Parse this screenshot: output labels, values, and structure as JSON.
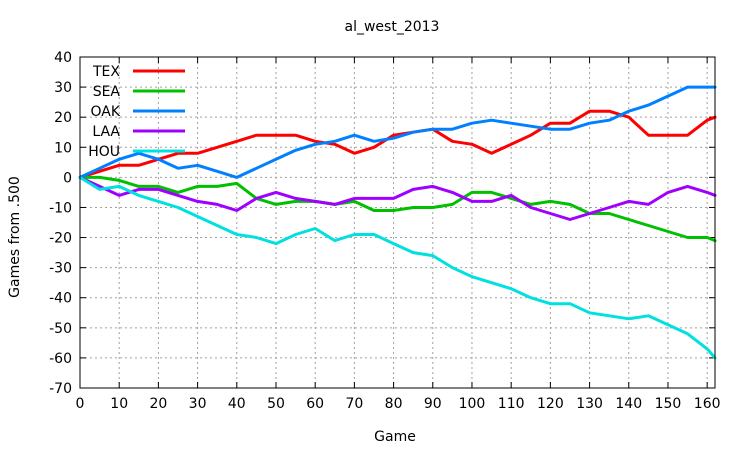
{
  "chart_data": {
    "type": "line",
    "title": "al_west_2013",
    "xlabel": "Game",
    "ylabel": "Games from .500",
    "xlim": [
      0,
      162
    ],
    "ylim": [
      -70,
      40
    ],
    "xticks": [
      0,
      10,
      20,
      30,
      40,
      50,
      60,
      70,
      80,
      90,
      100,
      110,
      120,
      130,
      140,
      150,
      160
    ],
    "yticks": [
      -70,
      -60,
      -50,
      -40,
      -30,
      -20,
      -10,
      0,
      10,
      20,
      30,
      40
    ],
    "grid": true,
    "legend_position": "top-left",
    "series": [
      {
        "name": "TEX",
        "color": "#ff0000",
        "x": [
          0,
          5,
          10,
          15,
          20,
          25,
          30,
          35,
          40,
          45,
          50,
          55,
          60,
          65,
          70,
          75,
          80,
          85,
          90,
          95,
          100,
          105,
          110,
          115,
          120,
          125,
          130,
          135,
          140,
          145,
          150,
          155,
          160,
          162
        ],
        "y": [
          0,
          2,
          4,
          4,
          6,
          8,
          8,
          10,
          12,
          14,
          14,
          14,
          12,
          11,
          8,
          10,
          14,
          15,
          16,
          12,
          11,
          8,
          11,
          14,
          18,
          18,
          22,
          22,
          20,
          14,
          14,
          14,
          19,
          20
        ]
      },
      {
        "name": "SEA",
        "color": "#00c000",
        "x": [
          0,
          5,
          10,
          15,
          20,
          25,
          30,
          35,
          40,
          45,
          50,
          55,
          60,
          65,
          70,
          75,
          80,
          85,
          90,
          95,
          100,
          105,
          110,
          115,
          120,
          125,
          130,
          135,
          140,
          145,
          150,
          155,
          160,
          162
        ],
        "y": [
          0,
          0,
          -1,
          -3,
          -3,
          -5,
          -3,
          -3,
          -2,
          -7,
          -9,
          -8,
          -8,
          -9,
          -8,
          -11,
          -11,
          -10,
          -10,
          -9,
          -5,
          -5,
          -7,
          -9,
          -8,
          -9,
          -12,
          -12,
          -14,
          -16,
          -18,
          -20,
          -20,
          -21
        ]
      },
      {
        "name": "OAK",
        "color": "#0080ff",
        "x": [
          0,
          5,
          10,
          15,
          20,
          25,
          30,
          35,
          40,
          45,
          50,
          55,
          60,
          65,
          70,
          75,
          80,
          85,
          90,
          95,
          100,
          105,
          110,
          115,
          120,
          125,
          130,
          135,
          140,
          145,
          150,
          155,
          160,
          162
        ],
        "y": [
          0,
          3,
          6,
          8,
          6,
          3,
          4,
          2,
          0,
          3,
          6,
          9,
          11,
          12,
          14,
          12,
          13,
          15,
          16,
          16,
          18,
          19,
          18,
          17,
          16,
          16,
          18,
          19,
          22,
          24,
          27,
          30,
          30,
          30
        ]
      },
      {
        "name": "LAA",
        "color": "#a000ff",
        "x": [
          0,
          5,
          10,
          15,
          20,
          25,
          30,
          35,
          40,
          45,
          50,
          55,
          60,
          65,
          70,
          75,
          80,
          85,
          90,
          95,
          100,
          105,
          110,
          115,
          120,
          125,
          130,
          135,
          140,
          145,
          150,
          155,
          160,
          162
        ],
        "y": [
          0,
          -3,
          -6,
          -4,
          -4,
          -6,
          -8,
          -9,
          -11,
          -7,
          -5,
          -7,
          -8,
          -9,
          -7,
          -7,
          -7,
          -4,
          -3,
          -5,
          -8,
          -8,
          -6,
          -10,
          -12,
          -14,
          -12,
          -10,
          -8,
          -9,
          -5,
          -3,
          -5,
          -6
        ]
      },
      {
        "name": "HOU",
        "color": "#00e0e0",
        "x": [
          0,
          5,
          10,
          15,
          20,
          25,
          30,
          35,
          40,
          45,
          50,
          55,
          60,
          65,
          70,
          75,
          80,
          85,
          90,
          95,
          100,
          105,
          110,
          115,
          120,
          125,
          130,
          135,
          140,
          145,
          150,
          155,
          160,
          162
        ],
        "y": [
          0,
          -4,
          -3,
          -6,
          -8,
          -10,
          -13,
          -16,
          -19,
          -20,
          -22,
          -19,
          -17,
          -21,
          -19,
          -19,
          -22,
          -25,
          -26,
          -30,
          -33,
          -35,
          -37,
          -40,
          -42,
          -42,
          -45,
          -46,
          -47,
          -46,
          -49,
          -52,
          -57,
          -60
        ]
      }
    ]
  }
}
